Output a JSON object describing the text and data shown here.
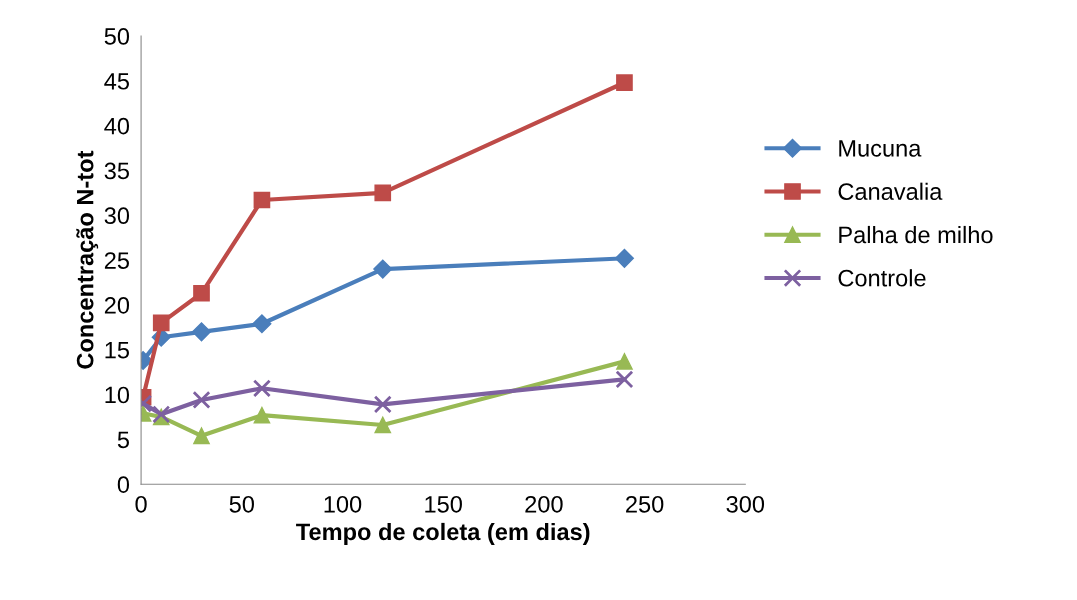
{
  "chart_data": {
    "type": "line",
    "xlabel": "Tempo de coleta (em dias)",
    "ylabel": "Concentração N-tot",
    "x": [
      1,
      10,
      30,
      60,
      120,
      240
    ],
    "series": [
      {
        "name": "Mucuna",
        "color": "#4a7ebb",
        "marker": "diamond",
        "values": [
          13.8,
          16.4,
          17.0,
          17.9,
          24.0,
          25.2
        ]
      },
      {
        "name": "Canavalia",
        "color": "#be4b48",
        "marker": "square",
        "values": [
          9.7,
          18.0,
          21.3,
          31.7,
          32.5,
          44.8
        ]
      },
      {
        "name": "Palha de milho",
        "color": "#98b954",
        "marker": "triangle",
        "values": [
          7.9,
          7.5,
          5.4,
          7.7,
          6.6,
          13.7
        ]
      },
      {
        "name": "Controle",
        "color": "#7d60a0",
        "marker": "cross",
        "values": [
          9.0,
          7.8,
          9.4,
          10.7,
          8.9,
          11.7
        ]
      }
    ],
    "xlim": [
      0,
      300
    ],
    "xticks": [
      0,
      50,
      100,
      150,
      200,
      250,
      300
    ],
    "ylim": [
      0,
      50
    ],
    "yticks": [
      0,
      5,
      10,
      15,
      20,
      25,
      30,
      35,
      40,
      45,
      50
    ],
    "grid": false,
    "legend": "right",
    "line_style": "solid"
  }
}
